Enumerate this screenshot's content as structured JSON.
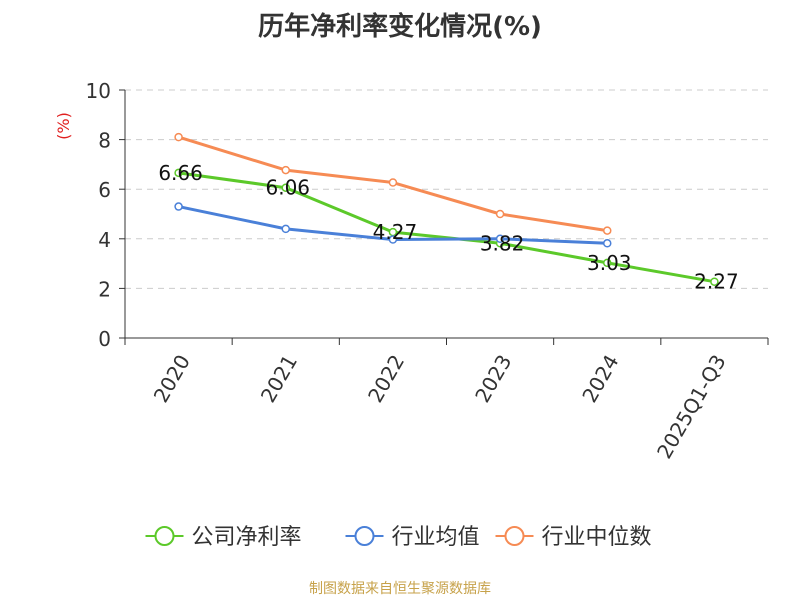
{
  "title": "历年净利率变化情况(%)",
  "source": "制图数据来自恒生聚源数据库",
  "chart_data": {
    "type": "line",
    "title": "历年净利率变化情况(%)",
    "ylabel": "(%)",
    "ylim": [
      0,
      10
    ],
    "yticks": [
      0,
      2,
      4,
      6,
      8,
      10
    ],
    "grid": true,
    "legend_position": "bottom",
    "categories": [
      "2020",
      "2021",
      "2022",
      "2023",
      "2024",
      "2025Q1-Q3"
    ],
    "series": [
      {
        "name": "公司净利率",
        "color": "#5cc92a",
        "values": [
          6.66,
          6.06,
          4.27,
          3.82,
          3.03,
          2.27
        ],
        "labels": [
          "6.66",
          "6.06",
          "4.27",
          "3.82",
          "3.03",
          "2.27"
        ]
      },
      {
        "name": "行业均值",
        "color": "#4a80d8",
        "values": [
          5.3,
          4.4,
          3.97,
          4.0,
          3.82,
          null
        ],
        "labels": null
      },
      {
        "name": "行业中位数",
        "color": "#f68b54",
        "values": [
          8.1,
          6.77,
          6.27,
          5.0,
          4.33,
          null
        ],
        "labels": null
      }
    ]
  }
}
